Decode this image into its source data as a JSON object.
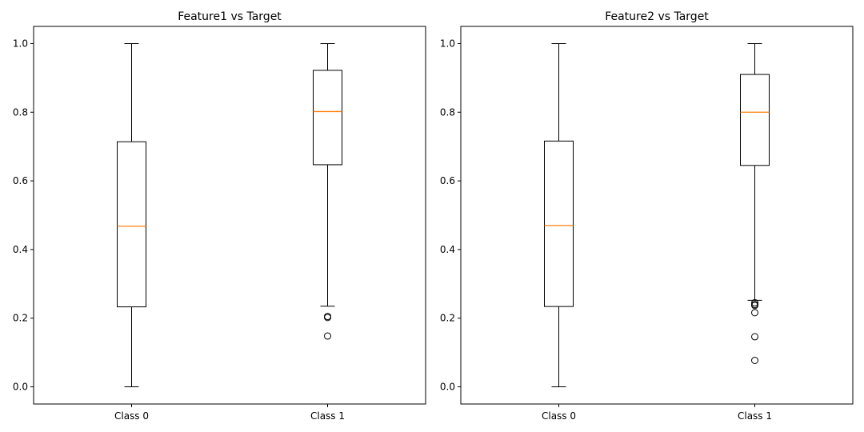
{
  "chart_data": [
    {
      "type": "box",
      "title": "Feature1 vs Target",
      "xlabel": "",
      "ylabel": "",
      "ylim": [
        -0.05,
        1.05
      ],
      "yticks": [
        0.0,
        0.2,
        0.4,
        0.6,
        0.8,
        1.0
      ],
      "ytick_labels": [
        "0.0",
        "0.2",
        "0.4",
        "0.6",
        "0.8",
        "1.0"
      ],
      "categories": [
        "Class 0",
        "Class 1"
      ],
      "boxes": [
        {
          "whisker_low": 0.0,
          "q1": 0.233,
          "median": 0.468,
          "q3": 0.714,
          "whisker_high": 1.0,
          "outliers": []
        },
        {
          "whisker_low": 0.235,
          "q1": 0.647,
          "median": 0.802,
          "q3": 0.922,
          "whisker_high": 1.0,
          "outliers": [
            0.205,
            0.202,
            0.148
          ]
        }
      ],
      "grid": false,
      "colors": {
        "box": "#000000",
        "median": "#ff7f0e",
        "background": "#ffffff"
      }
    },
    {
      "type": "box",
      "title": "Feature2 vs Target",
      "xlabel": "",
      "ylabel": "",
      "ylim": [
        -0.05,
        1.05
      ],
      "yticks": [
        0.0,
        0.2,
        0.4,
        0.6,
        0.8,
        1.0
      ],
      "ytick_labels": [
        "0.0",
        "0.2",
        "0.4",
        "0.6",
        "0.8",
        "1.0"
      ],
      "categories": [
        "Class 0",
        "Class 1"
      ],
      "boxes": [
        {
          "whisker_low": 0.0,
          "q1": 0.234,
          "median": 0.47,
          "q3": 0.716,
          "whisker_high": 1.0,
          "outliers": []
        },
        {
          "whisker_low": 0.252,
          "q1": 0.645,
          "median": 0.8,
          "q3": 0.91,
          "whisker_high": 1.0,
          "outliers": [
            0.245,
            0.24,
            0.237,
            0.216,
            0.146,
            0.077
          ]
        }
      ],
      "grid": false,
      "colors": {
        "box": "#000000",
        "median": "#ff7f0e",
        "background": "#ffffff"
      }
    }
  ]
}
